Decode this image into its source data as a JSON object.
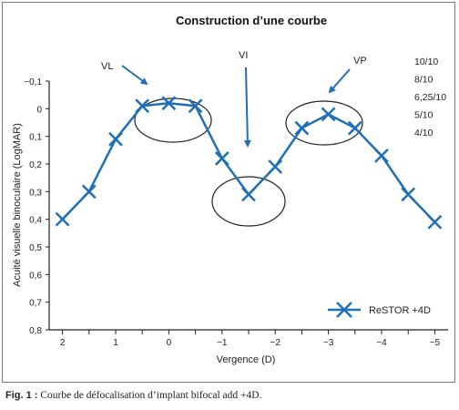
{
  "chart_data": {
    "type": "line",
    "title": "Construction d’une courbe",
    "xlabel": "Vergence (D)",
    "ylabel": "Acuité visuelle binoculaire (LogMAR)",
    "x_ticks": [
      "2",
      "1",
      "0",
      "−1",
      "−2",
      "−3",
      "−4",
      "−5"
    ],
    "x_tick_values": [
      2,
      1,
      0,
      -1,
      -2,
      -3,
      -4,
      -5
    ],
    "xlim": [
      2.25,
      -5.25
    ],
    "y_ticks": [
      "−0,1",
      "0",
      "0,1",
      "0,2",
      "0,3",
      "0,4",
      "0,5",
      "0,6",
      "0,7",
      "0,8"
    ],
    "y_tick_values": [
      -0.1,
      0,
      0.1,
      0.2,
      0.3,
      0.4,
      0.5,
      0.6,
      0.7,
      0.8
    ],
    "ylim": [
      -0.1,
      0.8
    ],
    "y_inverted": true,
    "grid": false,
    "legend_position": "bottom-right",
    "acuity_labels": [
      "10/10",
      "8/10",
      "6,25/10",
      "5/10",
      "4/10"
    ],
    "series": [
      {
        "name": "ReSTOR +4D",
        "color": "#1f6fb8",
        "marker": "x",
        "x": [
          2.0,
          1.5,
          1.0,
          0.5,
          0.0,
          -0.5,
          -1.0,
          -1.5,
          -2.0,
          -2.5,
          -3.0,
          -3.5,
          -4.0,
          -4.5,
          -5.0
        ],
        "y": [
          0.4,
          0.3,
          0.11,
          -0.01,
          -0.02,
          -0.01,
          0.18,
          0.31,
          0.21,
          0.07,
          0.02,
          0.07,
          0.17,
          0.31,
          0.41
        ]
      }
    ],
    "annotations": [
      {
        "text": "VL"
      },
      {
        "text": "VI"
      },
      {
        "text": "VP"
      }
    ]
  },
  "caption": {
    "label": "Fig. 1 :",
    "text": "Courbe de défocalisation d’implant bifocal add +4D."
  }
}
